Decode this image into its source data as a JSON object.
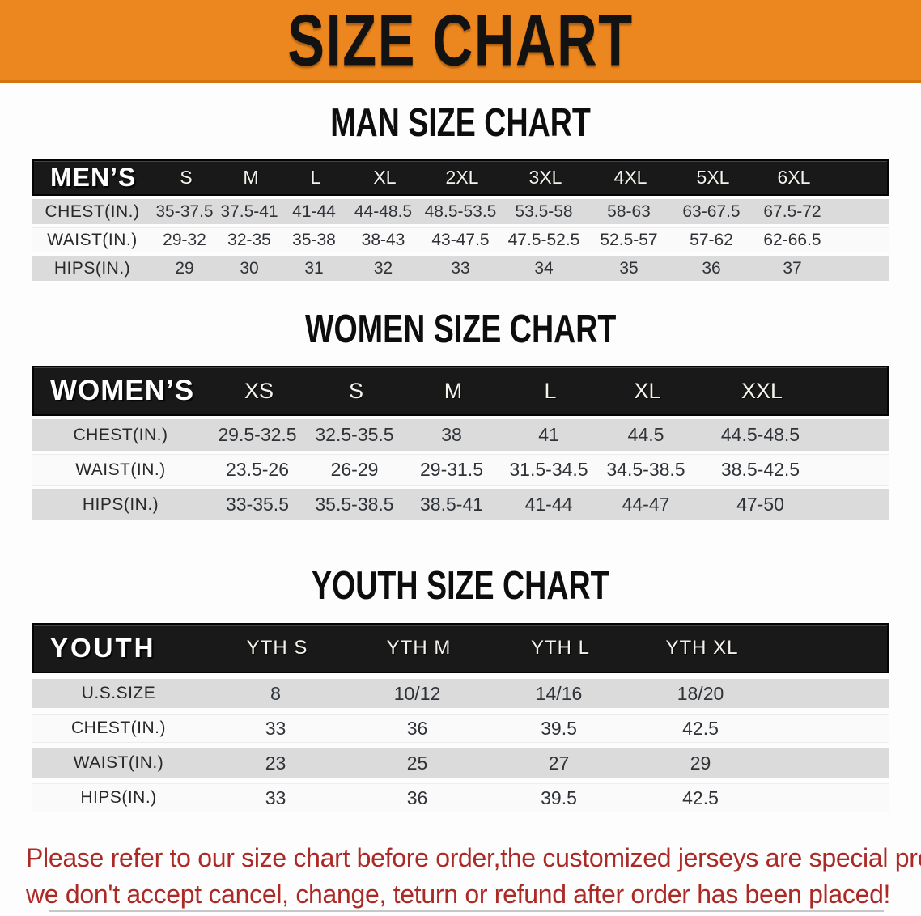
{
  "banner": {
    "title": "SIZE CHART",
    "bg_color": "#EC861E"
  },
  "sections": [
    {
      "id": "men",
      "heading": "MAN SIZE CHART",
      "corner_label": "MEN’S",
      "columns": [
        "S",
        "M",
        "L",
        "XL",
        "2XL",
        "3XL",
        "4XL",
        "5XL",
        "6XL"
      ],
      "rows": [
        {
          "label": "CHEST(IN.)",
          "values": [
            "35-37.5",
            "37.5-41",
            "41-44",
            "44-48.5",
            "48.5-53.5",
            "53.5-58",
            "58-63",
            "63-67.5",
            "67.5-72"
          ]
        },
        {
          "label": "WAIST(IN.)",
          "values": [
            "29-32",
            "32-35",
            "35-38",
            "38-43",
            "43-47.5",
            "47.5-52.5",
            "52.5-57",
            "57-62",
            "62-66.5"
          ]
        },
        {
          "label": "HIPS(IN.)",
          "values": [
            "29",
            "30",
            "31",
            "32",
            "33",
            "34",
            "35",
            "36",
            "37"
          ]
        }
      ]
    },
    {
      "id": "women",
      "heading": "WOMEN SIZE CHART",
      "corner_label": "WOMEN’S",
      "columns": [
        "XS",
        "S",
        "M",
        "L",
        "XL",
        "XXL"
      ],
      "rows": [
        {
          "label": "CHEST(IN.)",
          "values": [
            "29.5-32.5",
            "32.5-35.5",
            "38",
            "41",
            "44.5",
            "44.5-48.5"
          ]
        },
        {
          "label": "WAIST(IN.)",
          "values": [
            "23.5-26",
            "26-29",
            "29-31.5",
            "31.5-34.5",
            "34.5-38.5",
            "38.5-42.5"
          ]
        },
        {
          "label": "HIPS(IN.)",
          "values": [
            "33-35.5",
            "35.5-38.5",
            "38.5-41",
            "41-44",
            "44-47",
            "47-50"
          ]
        }
      ]
    },
    {
      "id": "youth",
      "heading": "YOUTH SIZE CHART",
      "corner_label": "YOUTH",
      "columns": [
        "YTH S",
        "YTH M",
        "YTH L",
        "YTH XL"
      ],
      "rows": [
        {
          "label": "U.S.SIZE",
          "values": [
            "8",
            "10/12",
            "14/16",
            "18/20"
          ]
        },
        {
          "label": "CHEST(IN.)",
          "values": [
            "33",
            "36",
            "39.5",
            "42.5"
          ]
        },
        {
          "label": "WAIST(IN.)",
          "values": [
            "23",
            "25",
            "27",
            "29"
          ]
        },
        {
          "label": "HIPS(IN.)",
          "values": [
            "33",
            "36",
            "39.5",
            "42.5"
          ]
        }
      ]
    }
  ],
  "disclaimer": {
    "line1": "Please refer to our size chart before order,the customized jerseys are special products,",
    "line2": "we don't accept cancel, change, teturn or refund after order has been placed!",
    "color": "#AC2A26"
  }
}
